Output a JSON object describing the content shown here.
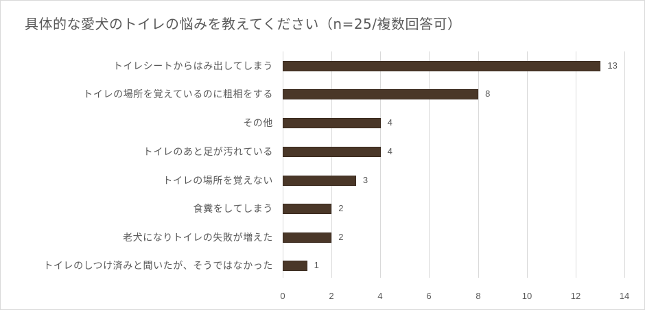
{
  "chart_data": {
    "type": "bar",
    "orientation": "horizontal",
    "title": "具体的な愛犬のトイレの悩みを教えてください（n=25/複数回答可）",
    "xlabel": "",
    "ylabel": "",
    "xlim": [
      0,
      14
    ],
    "x_ticks": [
      "0",
      "2",
      "4",
      "6",
      "8",
      "10",
      "12",
      "14"
    ],
    "grid": "vertical",
    "legend": "none",
    "bar_color": "#4a3728",
    "categories": [
      "トイレシートからはみ出してしまう",
      "トイレの場所を覚えているのに粗相をする",
      "その他",
      "トイレのあと足が汚れている",
      "トイレの場所を覚えない",
      "食糞をしてしまう",
      "老犬になりトイレの失敗が増えた",
      "トイレのしつけ済みと聞いたが、そうではなかった"
    ],
    "values": [
      13,
      8,
      4,
      4,
      3,
      2,
      2,
      1
    ],
    "value_labels": [
      "13",
      "8",
      "4",
      "4",
      "3",
      "2",
      "2",
      "1"
    ]
  }
}
